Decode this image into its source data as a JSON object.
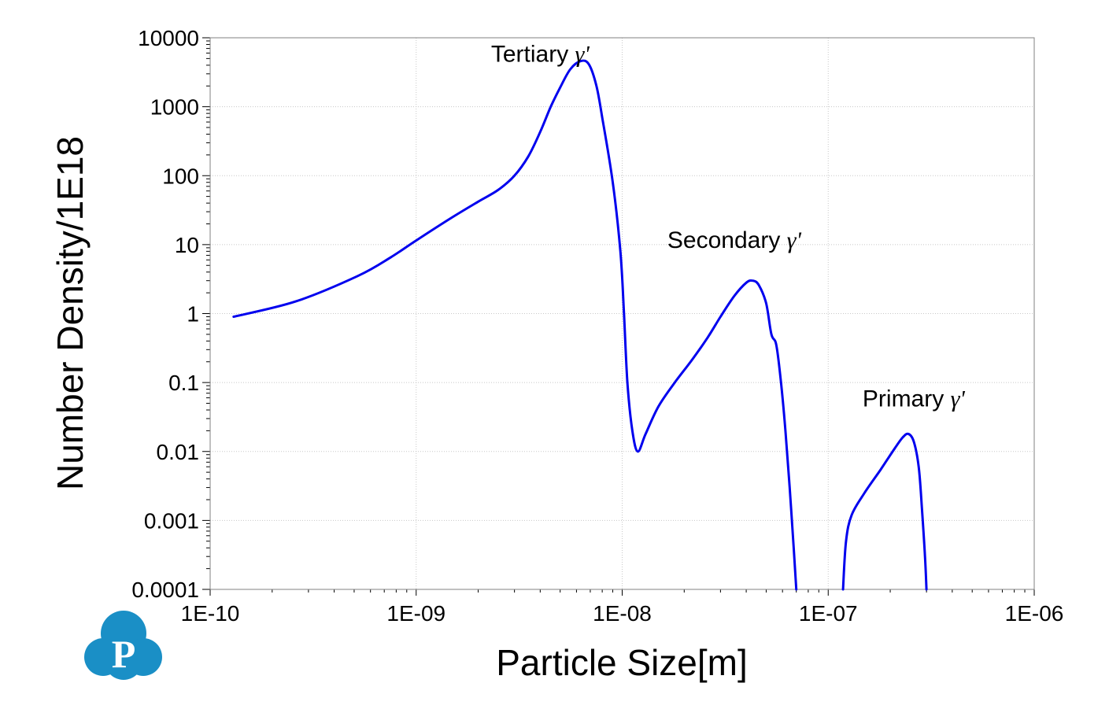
{
  "chart_data": {
    "type": "line",
    "xlabel": "Particle Size[m]",
    "ylabel": "Number Density/1E18",
    "x_scale": "log",
    "y_scale": "log",
    "xlim": [
      1e-10,
      1e-06
    ],
    "ylim": [
      0.0001,
      10000
    ],
    "grid": true,
    "x_ticks": [
      "1E-10",
      "1E-09",
      "1E-08",
      "1E-07",
      "1E-06"
    ],
    "y_ticks": [
      "0.0001",
      "0.001",
      "0.01",
      "0.1",
      "1",
      "10",
      "100",
      "1000",
      "10000"
    ],
    "series_color": "#0000ee",
    "series": [
      {
        "segments": [
          [
            [
              1.3e-10,
              0.9
            ],
            [
              2.6e-10,
              1.5
            ],
            [
              5.2e-10,
              3.5
            ],
            [
              7.5e-10,
              6.5
            ],
            [
              1e-09,
              11.5
            ],
            [
              1.5e-09,
              25
            ],
            [
              2e-09,
              42
            ],
            [
              2.5e-09,
              62
            ],
            [
              3e-09,
              100
            ],
            [
              3.5e-09,
              190
            ],
            [
              4e-09,
              430
            ],
            [
              4.5e-09,
              1000
            ],
            [
              5e-09,
              1900
            ],
            [
              5.6e-09,
              3500
            ],
            [
              6.3e-09,
              4600
            ],
            [
              6.9e-09,
              4100
            ],
            [
              7.5e-09,
              2000
            ],
            [
              8e-09,
              700
            ],
            [
              9e-09,
              80
            ],
            [
              9.8e-09,
              8
            ],
            [
              1.02e-08,
              1
            ],
            [
              1.06e-08,
              0.1
            ],
            [
              1.12e-08,
              0.02
            ],
            [
              1.19e-08,
              0.01
            ],
            [
              1.3e-08,
              0.018
            ],
            [
              1.5e-08,
              0.045
            ],
            [
              1.8e-08,
              0.1
            ],
            [
              2.2e-08,
              0.22
            ],
            [
              2.6e-08,
              0.45
            ],
            [
              3e-08,
              0.9
            ],
            [
              3.5e-08,
              1.8
            ],
            [
              4e-08,
              2.8
            ],
            [
              4.3e-08,
              3.0
            ],
            [
              4.6e-08,
              2.6
            ],
            [
              5e-08,
              1.4
            ],
            [
              5.3e-08,
              0.5
            ],
            [
              5.6e-08,
              0.35
            ],
            [
              5.9e-08,
              0.1
            ],
            [
              6.2e-08,
              0.02
            ],
            [
              6.5e-08,
              0.003
            ],
            [
              6.8e-08,
              0.0004
            ],
            [
              7e-08,
              0.0001
            ]
          ],
          [
            [
              1.18e-07,
              0.0001
            ],
            [
              1.22e-07,
              0.0005
            ],
            [
              1.3e-07,
              0.0012
            ],
            [
              1.5e-07,
              0.0025
            ],
            [
              1.8e-07,
              0.0055
            ],
            [
              2.1e-07,
              0.011
            ],
            [
              2.3e-07,
              0.016
            ],
            [
              2.45e-07,
              0.018
            ],
            [
              2.6e-07,
              0.014
            ],
            [
              2.75e-07,
              0.006
            ],
            [
              2.85e-07,
              0.0015
            ],
            [
              2.95e-07,
              0.0003
            ],
            [
              3e-07,
              0.0001
            ]
          ]
        ]
      }
    ],
    "annotations": [
      {
        "text": "Tertiary",
        "greek": "γ'",
        "x": 4e-09,
        "y": 4500
      },
      {
        "text": "Secondary",
        "greek": "γ'",
        "x": 3.5e-08,
        "y": 9
      },
      {
        "text": "Primary",
        "greek": "γ'",
        "x": 2.6e-07,
        "y": 0.045
      }
    ]
  },
  "logo": {
    "name": "p-logo-icon",
    "letter": "P",
    "color": "#1a8fc6"
  }
}
